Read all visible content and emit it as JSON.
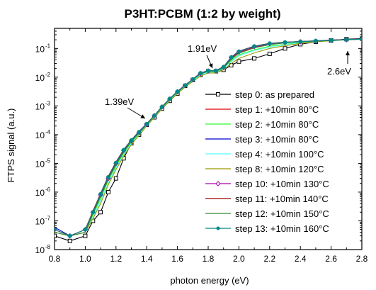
{
  "chart_data": {
    "type": "line",
    "title": "P3HT:PCBM (1:2 by weight)",
    "xlabel": "photon energy (eV)",
    "ylabel": "FTPS signal (a.u.)",
    "xlim": [
      0.8,
      2.8
    ],
    "ylim": [
      1e-08,
      0.5
    ],
    "y_scale": "log",
    "x_ticks": [
      "0.8",
      "1.0",
      "1.2",
      "1.4",
      "1.6",
      "1.8",
      "2.0",
      "2.2",
      "2.4",
      "2.6",
      "2.8"
    ],
    "y_ticks": [
      {
        "value": 1e-08,
        "base": "10",
        "exp": "-8"
      },
      {
        "value": 1e-07,
        "base": "10",
        "exp": "-7"
      },
      {
        "value": 1e-06,
        "base": "10",
        "exp": "-6"
      },
      {
        "value": 1e-05,
        "base": "10",
        "exp": "-5"
      },
      {
        "value": 0.0001,
        "base": "10",
        "exp": "-4"
      },
      {
        "value": 0.001,
        "base": "10",
        "exp": "-3"
      },
      {
        "value": 0.01,
        "base": "10",
        "exp": "-2"
      },
      {
        "value": 0.1,
        "base": "10",
        "exp": "-1"
      }
    ],
    "grid": false,
    "legend_position": "bottom-right",
    "series": [
      {
        "name": "step 0: as prepared",
        "color": "#000000",
        "marker": "square",
        "x": [
          0.8,
          0.9,
          1.0,
          1.05,
          1.1,
          1.15,
          1.2,
          1.25,
          1.3,
          1.35,
          1.4,
          1.45,
          1.5,
          1.55,
          1.6,
          1.65,
          1.7,
          1.75,
          1.8,
          1.85,
          1.9,
          1.95,
          2.0,
          2.1,
          2.2,
          2.3,
          2.4,
          2.5,
          2.6,
          2.7,
          2.8
        ],
        "y": [
          3e-08,
          2e-08,
          3e-08,
          1e-07,
          2e-07,
          1e-06,
          3e-06,
          1.5e-05,
          5e-05,
          0.0001,
          0.00022,
          0.0004,
          0.0008,
          0.0015,
          0.0027,
          0.005,
          0.008,
          0.012,
          0.016,
          0.016,
          0.018,
          0.026,
          0.035,
          0.045,
          0.065,
          0.1,
          0.14,
          0.17,
          0.19,
          0.21,
          0.22
        ]
      },
      {
        "name": "step 1: +10min 80°C",
        "color": "#e00000",
        "marker": "none",
        "x": [
          0.8,
          0.9,
          1.0,
          1.05,
          1.1,
          1.15,
          1.2,
          1.25,
          1.3,
          1.35,
          1.4,
          1.45,
          1.5,
          1.55,
          1.6,
          1.65,
          1.7,
          1.75,
          1.8,
          1.85,
          1.9,
          1.95,
          2.0,
          2.1,
          2.2,
          2.3,
          2.4,
          2.5,
          2.6,
          2.7,
          2.8
        ],
        "y": [
          5e-08,
          3e-08,
          4e-08,
          2e-07,
          8e-07,
          3e-06,
          1e-05,
          2.7e-05,
          6e-05,
          0.00012,
          0.00023,
          0.00045,
          0.0009,
          0.0017,
          0.003,
          0.005,
          0.008,
          0.013,
          0.016,
          0.016,
          0.022,
          0.045,
          0.07,
          0.11,
          0.14,
          0.16,
          0.17,
          0.18,
          0.19,
          0.2,
          0.21
        ]
      },
      {
        "name": "step 2: +10min 80°C",
        "color": "#33ff33",
        "marker": "none",
        "x": [
          0.8,
          0.9,
          1.0,
          1.05,
          1.1,
          1.15,
          1.2,
          1.25,
          1.3,
          1.35,
          1.4,
          1.45,
          1.5,
          1.55,
          1.6,
          1.65,
          1.7,
          1.75,
          1.8,
          1.85,
          1.9,
          1.95,
          2.0,
          2.1,
          2.2,
          2.3,
          2.4,
          2.5,
          2.6,
          2.7,
          2.8
        ],
        "y": [
          4e-08,
          3e-08,
          4e-08,
          1.6e-07,
          6e-07,
          2.5e-06,
          8e-06,
          2.3e-05,
          5.5e-05,
          0.00011,
          0.00022,
          0.00043,
          0.00085,
          0.0016,
          0.0029,
          0.0048,
          0.0075,
          0.012,
          0.015,
          0.015,
          0.02,
          0.038,
          0.06,
          0.09,
          0.12,
          0.14,
          0.16,
          0.175,
          0.185,
          0.2,
          0.21
        ]
      },
      {
        "name": "step 3: +10min 80°C",
        "color": "#0000cc",
        "marker": "none",
        "x": [
          0.8,
          0.9,
          1.0,
          1.05,
          1.1,
          1.15,
          1.2,
          1.25,
          1.3,
          1.35,
          1.4,
          1.45,
          1.5,
          1.55,
          1.6,
          1.65,
          1.7,
          1.75,
          1.8,
          1.85,
          1.9,
          1.95,
          2.0,
          2.1,
          2.2,
          2.3,
          2.4,
          2.5,
          2.6,
          2.7,
          2.8
        ],
        "y": [
          6e-08,
          3e-08,
          5e-08,
          2e-07,
          9e-07,
          3.5e-06,
          1.1e-05,
          3e-05,
          6.5e-05,
          0.00013,
          0.00024,
          0.00047,
          0.00095,
          0.0018,
          0.0032,
          0.0053,
          0.0085,
          0.014,
          0.017,
          0.017,
          0.023,
          0.05,
          0.08,
          0.12,
          0.15,
          0.165,
          0.175,
          0.185,
          0.195,
          0.205,
          0.215
        ]
      },
      {
        "name": "step 4: +10min 100°C",
        "color": "#55ffff",
        "marker": "none",
        "x": [
          0.8,
          0.9,
          1.0,
          1.05,
          1.1,
          1.15,
          1.2,
          1.25,
          1.3,
          1.35,
          1.4,
          1.45,
          1.5,
          1.55,
          1.6,
          1.65,
          1.7,
          1.75,
          1.8,
          1.85,
          1.9,
          1.95,
          2.0,
          2.1,
          2.2,
          2.3,
          2.4,
          2.5,
          2.6,
          2.7,
          2.8
        ],
        "y": [
          4e-08,
          3e-08,
          4e-08,
          1.3e-07,
          5e-07,
          2e-06,
          7e-06,
          2e-05,
          5e-05,
          0.0001,
          0.00021,
          0.00042,
          0.00085,
          0.0016,
          0.0028,
          0.0047,
          0.0075,
          0.012,
          0.015,
          0.015,
          0.02,
          0.035,
          0.055,
          0.085,
          0.11,
          0.135,
          0.155,
          0.17,
          0.185,
          0.2,
          0.21
        ]
      },
      {
        "name": "step 8: +10min 120°C",
        "color": "#999900",
        "marker": "none",
        "x": [
          0.8,
          0.9,
          1.0,
          1.05,
          1.1,
          1.15,
          1.2,
          1.25,
          1.3,
          1.35,
          1.4,
          1.45,
          1.5,
          1.55,
          1.6,
          1.65,
          1.7,
          1.75,
          1.8,
          1.85,
          1.9,
          1.95,
          2.0,
          2.1,
          2.2,
          2.3,
          2.4,
          2.5,
          2.6,
          2.7,
          2.8
        ],
        "y": [
          4e-08,
          3e-08,
          4e-08,
          1.2e-07,
          4e-07,
          1.8e-06,
          6e-06,
          1.8e-05,
          4.5e-05,
          9.5e-05,
          0.0002,
          0.0004,
          0.0008,
          0.0015,
          0.0027,
          0.0045,
          0.007,
          0.011,
          0.014,
          0.014,
          0.018,
          0.03,
          0.045,
          0.07,
          0.1,
          0.125,
          0.15,
          0.17,
          0.185,
          0.2,
          0.21
        ]
      },
      {
        "name": "step 10: +10min 130°C",
        "color": "#aa00aa",
        "marker": "diamond",
        "x": [
          0.8,
          0.9,
          1.0,
          1.05,
          1.1,
          1.15,
          1.2,
          1.25,
          1.3,
          1.35,
          1.4,
          1.45,
          1.5,
          1.55,
          1.6,
          1.65,
          1.7,
          1.75,
          1.8,
          1.85,
          1.9,
          1.95,
          2.0,
          2.1,
          2.2,
          2.3,
          2.4,
          2.5,
          2.6,
          2.7,
          2.8
        ],
        "y": [
          5e-08,
          3e-08,
          5e-08,
          2e-07,
          8e-07,
          3e-06,
          1e-05,
          2.8e-05,
          6e-05,
          0.00012,
          0.00023,
          0.00046,
          0.00092,
          0.00175,
          0.0031,
          0.0051,
          0.0082,
          0.0135,
          0.0165,
          0.0165,
          0.022,
          0.048,
          0.075,
          0.115,
          0.145,
          0.16,
          0.17,
          0.18,
          0.19,
          0.2,
          0.21
        ]
      },
      {
        "name": "step 11: +10min 140°C",
        "color": "#990000",
        "marker": "none",
        "x": [
          0.8,
          0.9,
          1.0,
          1.05,
          1.1,
          1.15,
          1.2,
          1.25,
          1.3,
          1.35,
          1.4,
          1.45,
          1.5,
          1.55,
          1.6,
          1.65,
          1.7,
          1.75,
          1.8,
          1.85,
          1.9,
          1.95,
          2.0,
          2.1,
          2.2,
          2.3,
          2.4,
          2.5,
          2.6,
          2.7,
          2.8
        ],
        "y": [
          5e-08,
          3e-08,
          5e-08,
          2.2e-07,
          9e-07,
          3.5e-06,
          1.1e-05,
          3e-05,
          6.5e-05,
          0.000125,
          0.00024,
          0.00047,
          0.00095,
          0.0018,
          0.0032,
          0.0053,
          0.0085,
          0.014,
          0.017,
          0.017,
          0.023,
          0.05,
          0.08,
          0.12,
          0.15,
          0.165,
          0.175,
          0.185,
          0.195,
          0.205,
          0.215
        ]
      },
      {
        "name": "step 12: +10min 150°C",
        "color": "#338833",
        "marker": "none",
        "x": [
          0.8,
          0.9,
          1.0,
          1.05,
          1.1,
          1.15,
          1.2,
          1.25,
          1.3,
          1.35,
          1.4,
          1.45,
          1.5,
          1.55,
          1.6,
          1.65,
          1.7,
          1.75,
          1.8,
          1.85,
          1.9,
          1.95,
          2.0,
          2.1,
          2.2,
          2.3,
          2.4,
          2.5,
          2.6,
          2.7,
          2.8
        ],
        "y": [
          4e-08,
          3e-08,
          4e-08,
          1.8e-07,
          7e-07,
          2.8e-06,
          9e-06,
          2.5e-05,
          5.8e-05,
          0.000115,
          0.000225,
          0.00045,
          0.0009,
          0.0017,
          0.003,
          0.005,
          0.008,
          0.013,
          0.016,
          0.016,
          0.021,
          0.042,
          0.068,
          0.105,
          0.135,
          0.155,
          0.17,
          0.18,
          0.19,
          0.2,
          0.21
        ]
      },
      {
        "name": "step 13: +10min 160°C",
        "color": "#008888",
        "marker": "star",
        "x": [
          0.8,
          0.9,
          1.0,
          1.05,
          1.1,
          1.15,
          1.2,
          1.25,
          1.3,
          1.35,
          1.4,
          1.45,
          1.5,
          1.55,
          1.6,
          1.65,
          1.7,
          1.75,
          1.8,
          1.85,
          1.9,
          1.95,
          2.0,
          2.1,
          2.2,
          2.3,
          2.4,
          2.5,
          2.6,
          2.7,
          2.8
        ],
        "y": [
          5e-08,
          3e-08,
          5e-08,
          2e-07,
          8.5e-07,
          3.3e-06,
          1.05e-05,
          2.9e-05,
          6.3e-05,
          0.000122,
          0.000235,
          0.00046,
          0.00093,
          0.00178,
          0.00315,
          0.0052,
          0.0084,
          0.0138,
          0.0168,
          0.0168,
          0.0225,
          0.049,
          0.078,
          0.118,
          0.148,
          0.163,
          0.173,
          0.183,
          0.193,
          0.203,
          0.213
        ]
      }
    ],
    "annotations": [
      {
        "text": "1.39eV",
        "x": 1.39,
        "y": 0.00022
      },
      {
        "text": "1.91eV",
        "x": 1.91,
        "y": 0.02
      },
      {
        "text": "2.6eV",
        "x": 2.6,
        "y": 0.19
      }
    ]
  }
}
